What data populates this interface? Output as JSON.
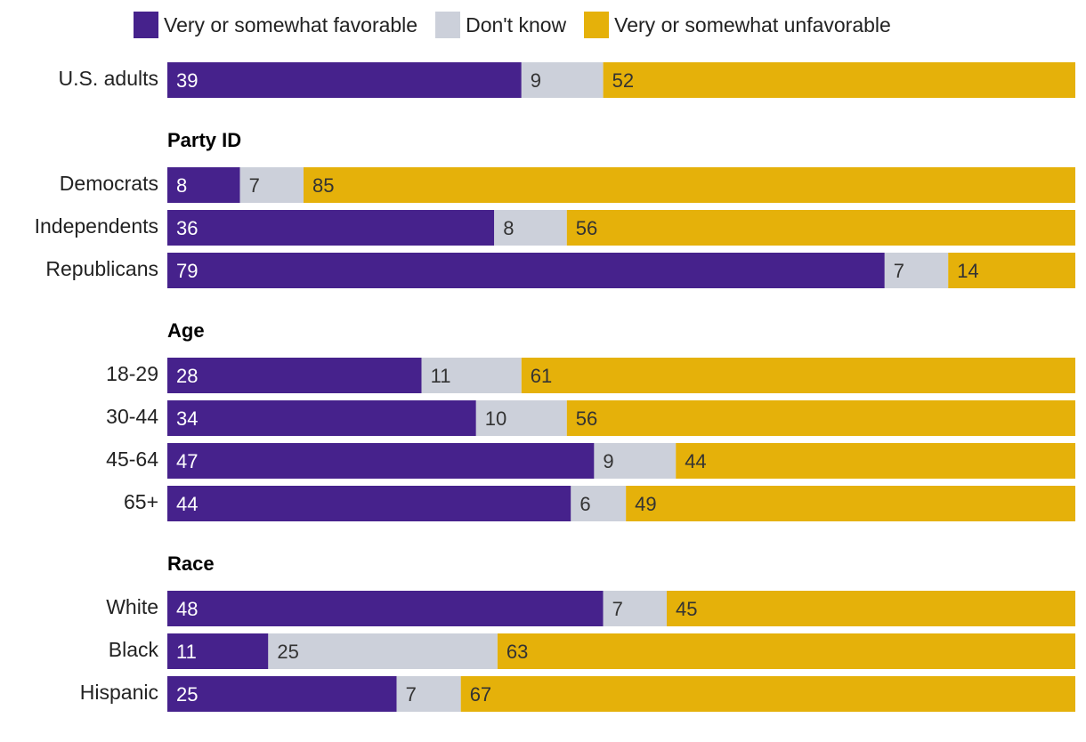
{
  "legend": {
    "favorable": "Very or somewhat favorable",
    "dont_know": "Don't know",
    "unfavorable": "Very or somewhat unfavorable"
  },
  "colors": {
    "favorable": "#46228c",
    "dont_know": "#ccd0da",
    "unfavorable": "#e5b10a",
    "label_light": "#ffffff",
    "label_dark": "#333333"
  },
  "chart_data": {
    "type": "bar",
    "orientation": "horizontal",
    "stacked": true,
    "title": "",
    "xlabel": "",
    "ylabel": "",
    "xlim": [
      0,
      100
    ],
    "series": [
      {
        "key": "favorable",
        "name": "Very or somewhat favorable"
      },
      {
        "key": "dont_know",
        "name": "Don't know"
      },
      {
        "key": "unfavorable",
        "name": "Very or somewhat unfavorable"
      }
    ],
    "groups": [
      {
        "title": "",
        "rows": [
          {
            "label": "U.S. adults",
            "values": [
              39,
              9,
              52
            ]
          }
        ]
      },
      {
        "title": "Party ID",
        "rows": [
          {
            "label": "Democrats",
            "values": [
              8,
              7,
              85
            ]
          },
          {
            "label": "Independents",
            "values": [
              36,
              8,
              56
            ]
          },
          {
            "label": "Republicans",
            "values": [
              79,
              7,
              14
            ]
          }
        ]
      },
      {
        "title": "Age",
        "rows": [
          {
            "label": "18-29",
            "values": [
              28,
              11,
              61
            ]
          },
          {
            "label": "30-44",
            "values": [
              34,
              10,
              56
            ]
          },
          {
            "label": "45-64",
            "values": [
              47,
              9,
              44
            ]
          },
          {
            "label": "65+",
            "values": [
              44,
              6,
              49
            ]
          }
        ]
      },
      {
        "title": "Race",
        "rows": [
          {
            "label": "White",
            "values": [
              48,
              7,
              45
            ]
          },
          {
            "label": "Black",
            "values": [
              11,
              25,
              63
            ]
          },
          {
            "label": "Hispanic",
            "values": [
              25,
              7,
              67
            ]
          }
        ]
      }
    ]
  }
}
